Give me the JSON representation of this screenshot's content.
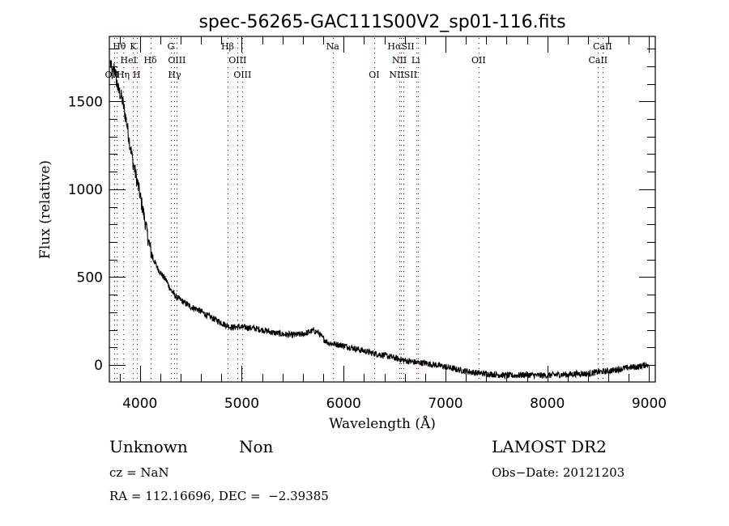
{
  "chart_data": {
    "type": "line",
    "title": "spec-56265-GAC111S00V2_sp01-116.fits",
    "xlabel": "Wavelength (Å)",
    "ylabel": "Flux (relative)",
    "xlim": [
      3700,
      9060
    ],
    "ylim": [
      -97,
      1870
    ],
    "xticks": [
      4000,
      5000,
      6000,
      7000,
      8000,
      9000
    ],
    "xtick_labels": [
      "4000",
      "5000",
      "6000",
      "7000",
      "8000",
      "9000"
    ],
    "xminor_step": 200,
    "yticks": [
      0,
      500,
      1000,
      1500
    ],
    "ytick_labels": [
      "0",
      "500",
      "1000",
      "1500"
    ],
    "yminor_step": 100,
    "grid": false,
    "series": [
      {
        "name": "flux",
        "color": "#000000",
        "x": [
          3710,
          3730,
          3750,
          3770,
          3790,
          3810,
          3830,
          3850,
          3870,
          3890,
          3910,
          3930,
          3960,
          3990,
          4020,
          4050,
          4080,
          4110,
          4140,
          4180,
          4220,
          4260,
          4300,
          4350,
          4400,
          4450,
          4500,
          4550,
          4600,
          4650,
          4700,
          4750,
          4800,
          4850,
          4900,
          4950,
          5000,
          5100,
          5200,
          5300,
          5400,
          5500,
          5600,
          5700,
          5750,
          5800,
          5850,
          5900,
          6000,
          6100,
          6200,
          6300,
          6400,
          6500,
          6600,
          6700,
          6800,
          6900,
          7000,
          7100,
          7200,
          7300,
          7400,
          7500,
          7600,
          7700,
          7800,
          7900,
          8000,
          8100,
          8200,
          8300,
          8400,
          8500,
          8600,
          8700,
          8800,
          8900,
          8960,
          8990
        ],
        "y": [
          1720,
          1650,
          1700,
          1620,
          1560,
          1540,
          1500,
          1440,
          1380,
          1300,
          1230,
          1160,
          1080,
          1000,
          910,
          820,
          720,
          640,
          590,
          545,
          510,
          480,
          430,
          390,
          370,
          350,
          330,
          320,
          305,
          285,
          270,
          255,
          240,
          225,
          215,
          215,
          215,
          210,
          200,
          185,
          175,
          170,
          175,
          195,
          185,
          150,
          125,
          120,
          110,
          95,
          80,
          65,
          55,
          40,
          25,
          15,
          10,
          0,
          -10,
          -25,
          -35,
          -45,
          -50,
          -55,
          -60,
          -60,
          -55,
          -60,
          -60,
          -55,
          -55,
          -50,
          -50,
          -40,
          -35,
          -25,
          -15,
          -10,
          0,
          5
        ]
      }
    ],
    "noise_amplitude": 18,
    "line_markers": [
      {
        "label": "Hθ",
        "wavelength": 3798,
        "row": 0,
        "color": "#8b0000"
      },
      {
        "label": "K",
        "wavelength": 3934,
        "row": 0,
        "color": "#8b0000"
      },
      {
        "label": "G",
        "wavelength": 4305,
        "row": 0,
        "color": "#8b0000"
      },
      {
        "label": "Hβ",
        "wavelength": 4861,
        "row": 0,
        "color": "#8b0000"
      },
      {
        "label": "Na",
        "wavelength": 5893,
        "row": 0,
        "color": "#8b0000"
      },
      {
        "label": "HαSII",
        "wavelength": 6563,
        "row": 0,
        "color": "#8b0000"
      },
      {
        "label": "CaII",
        "wavelength": 8542,
        "row": 0,
        "color": "#8b0000"
      },
      {
        "label": "HeI",
        "wavelength": 3889,
        "row": 1,
        "color": "#8b0000"
      },
      {
        "label": "Hδ",
        "wavelength": 4102,
        "row": 1,
        "color": "#8b0000"
      },
      {
        "label": "OIII",
        "wavelength": 4363,
        "row": 1,
        "color": "#8b0000"
      },
      {
        "label": "OIII",
        "wavelength": 4959,
        "row": 1,
        "color": "#8b0000"
      },
      {
        "label": "NII",
        "wavelength": 6548,
        "row": 1,
        "color": "#8b0000"
      },
      {
        "label": "Li",
        "wavelength": 6708,
        "row": 1,
        "color": "#8b0000"
      },
      {
        "label": "OII",
        "wavelength": 7325,
        "row": 1,
        "color": "#8b0000"
      },
      {
        "label": "CaII",
        "wavelength": 8498,
        "row": 1,
        "color": "#8b0000"
      },
      {
        "label": "OII",
        "wavelength": 3727,
        "row": 2,
        "color": "#8b0000"
      },
      {
        "label": "Hη",
        "wavelength": 3835,
        "row": 2,
        "color": "#8b0000"
      },
      {
        "label": "H",
        "wavelength": 3969,
        "row": 2,
        "color": "#8b0000"
      },
      {
        "label": "Hγ",
        "wavelength": 4340,
        "row": 2,
        "color": "#8b0000"
      },
      {
        "label": "OIII",
        "wavelength": 5007,
        "row": 2,
        "color": "#8b0000"
      },
      {
        "label": "OI",
        "wavelength": 6300,
        "row": 2,
        "color": "#8b0000"
      },
      {
        "label": "NIISII",
        "wavelength": 6584,
        "row": 2,
        "color": "#8b0000"
      }
    ],
    "extra_marker_lines": [
      3750,
      3771,
      3835,
      3934,
      3969,
      4102,
      4305,
      4340,
      4363,
      4861,
      4959,
      5007,
      5893,
      6300,
      6548,
      6563,
      6584,
      6717,
      6731,
      7325,
      8498,
      8542
    ]
  },
  "info": {
    "class": "Unknown",
    "subclass": "Non",
    "cz": "cz = NaN",
    "coords": "RA = 112.16696, DEC =  −2.39385",
    "survey": "LAMOST DR2",
    "obs_date": "Obs−Date: 20121203"
  }
}
